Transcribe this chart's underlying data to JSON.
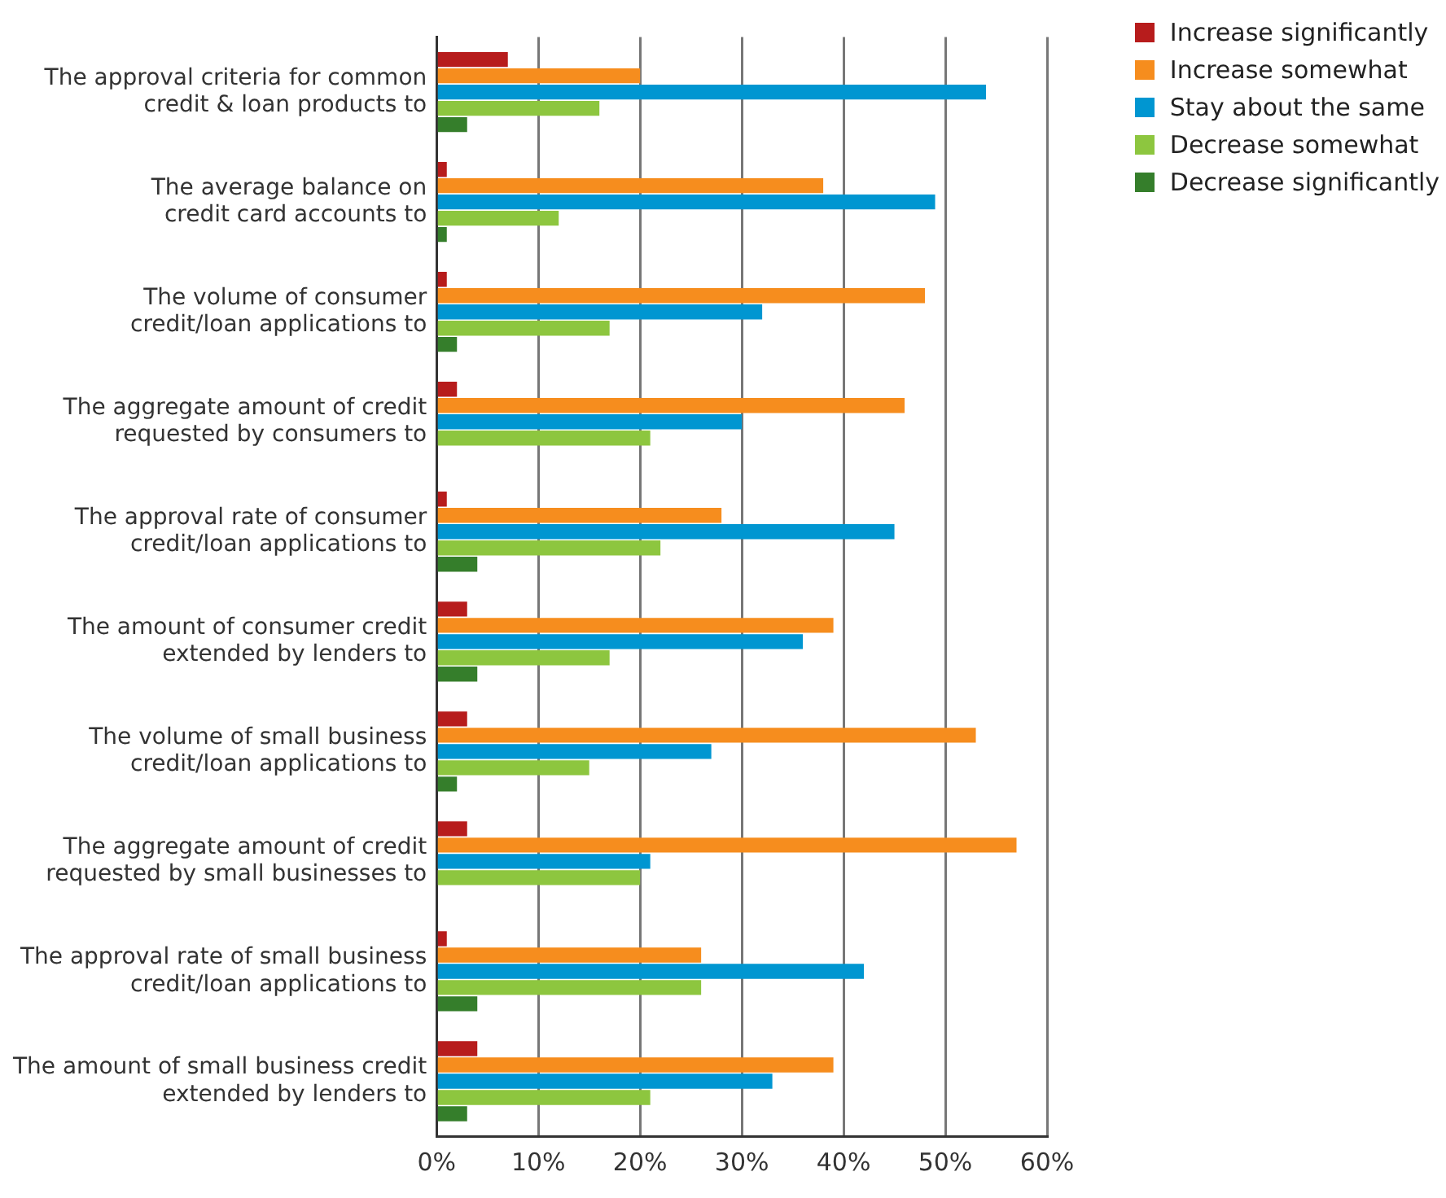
{
  "chart_data": {
    "type": "bar",
    "orientation": "horizontal",
    "categories": [
      "The approval criteria for common\ncredit & loan products to",
      "The average balance on\ncredit card accounts to",
      "The volume of consumer\ncredit/loan applications to",
      "The aggregate amount of credit\nrequested by consumers to",
      "The approval rate of consumer\ncredit/loan applications to",
      "The amount of consumer credit\nextended by lenders to",
      "The volume of small business\ncredit/loan applications to",
      "The aggregate amount of credit\nrequested by small businesses to",
      "The approval rate of small business\ncredit/loan applications to",
      "The amount of small business credit\nextended by lenders to"
    ],
    "series": [
      {
        "name": "Increase significantly",
        "color": "#b71c1c",
        "values": [
          7,
          1,
          1,
          2,
          1,
          3,
          3,
          3,
          1,
          4
        ]
      },
      {
        "name": "Increase somewhat",
        "color": "#f68d1e",
        "values": [
          20,
          38,
          48,
          46,
          28,
          39,
          53,
          57,
          26,
          39
        ]
      },
      {
        "name": "Stay about the same",
        "color": "#0096d1",
        "values": [
          54,
          49,
          32,
          30,
          45,
          36,
          27,
          21,
          42,
          33
        ]
      },
      {
        "name": "Decrease somewhat",
        "color": "#8dc63f",
        "values": [
          16,
          12,
          17,
          21,
          22,
          17,
          15,
          20,
          26,
          21
        ]
      },
      {
        "name": "Decrease significantly",
        "color": "#357e2b",
        "values": [
          3,
          1,
          2,
          0,
          4,
          4,
          2,
          0,
          4,
          3
        ]
      }
    ],
    "xlim": [
      0,
      60
    ],
    "xticks": [
      {
        "value": 0,
        "label": "0%"
      },
      {
        "value": 10,
        "label": "10%"
      },
      {
        "value": 20,
        "label": "20%"
      },
      {
        "value": 30,
        "label": "30%"
      },
      {
        "value": 40,
        "label": "40%"
      },
      {
        "value": 50,
        "label": "50%"
      },
      {
        "value": 60,
        "label": "60%"
      }
    ],
    "grid": "x",
    "legend": "top right"
  }
}
